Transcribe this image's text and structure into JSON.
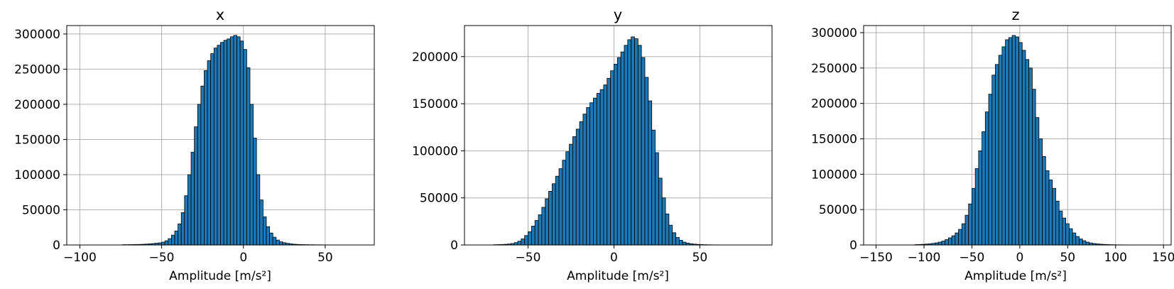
{
  "colors": {
    "bar_fill": "#1f77b4",
    "bar_edge": "#000000",
    "grid": "#b0b0b0"
  },
  "chart_data": [
    {
      "type": "bar",
      "title": "x",
      "xlabel": "Amplitude [m/s²]",
      "ylabel": "",
      "grid": true,
      "xlim": [
        -108,
        80
      ],
      "ylim": [
        0,
        312000
      ],
      "xticks": [
        -100,
        -50,
        0,
        50
      ],
      "yticks": [
        0,
        50000,
        100000,
        150000,
        200000,
        250000,
        300000
      ],
      "xtick_labels": [
        "−100",
        "−50",
        "0",
        "50"
      ],
      "ytick_labels": [
        "0",
        "50000",
        "100000",
        "150000",
        "200000",
        "250000",
        "300000"
      ],
      "bin_width": 2,
      "x": [
        -73,
        -71,
        -69,
        -67,
        -65,
        -63,
        -61,
        -59,
        -57,
        -55,
        -53,
        -51,
        -49,
        -47,
        -45,
        -43,
        -41,
        -39,
        -37,
        -35,
        -33,
        -31,
        -29,
        -27,
        -25,
        -23,
        -21,
        -19,
        -17,
        -15,
        -13,
        -11,
        -9,
        -7,
        -5,
        -3,
        -1,
        1,
        3,
        5,
        7,
        9,
        11,
        13,
        15,
        17,
        19,
        21,
        23,
        25,
        27,
        29,
        31,
        33,
        35,
        37,
        39,
        41,
        43,
        45,
        47,
        49,
        51,
        53,
        55,
        57,
        59,
        61,
        63,
        65,
        67,
        69,
        71
      ],
      "values": [
        400,
        400,
        500,
        600,
        700,
        800,
        1000,
        1300,
        1600,
        2000,
        2500,
        3000,
        4000,
        6000,
        9000,
        14000,
        20000,
        30000,
        46000,
        70000,
        100000,
        132000,
        168000,
        200000,
        226000,
        248000,
        262000,
        272000,
        280000,
        284000,
        288000,
        291000,
        293000,
        296000,
        298000,
        296000,
        290000,
        278000,
        252000,
        200000,
        152000,
        100000,
        64000,
        40000,
        26000,
        17000,
        11000,
        7000,
        4500,
        3200,
        2300,
        1600,
        1100,
        800,
        600,
        500,
        400,
        300,
        300,
        200,
        200,
        150,
        120,
        100,
        80,
        60,
        50,
        40,
        30,
        30,
        20,
        20,
        10
      ]
    },
    {
      "type": "bar",
      "title": "y",
      "xlabel": "Amplitude [m/s²]",
      "ylabel": "",
      "grid": true,
      "xlim": [
        -87,
        92
      ],
      "ylim": [
        0,
        233000
      ],
      "xticks": [
        -50,
        0,
        50
      ],
      "yticks": [
        0,
        50000,
        100000,
        150000,
        200000
      ],
      "xtick_labels": [
        "−50",
        "0",
        "50"
      ],
      "ytick_labels": [
        "0",
        "50000",
        "100000",
        "150000",
        "200000"
      ],
      "bin_width": 2,
      "x": [
        -69,
        -67,
        -65,
        -63,
        -61,
        -59,
        -57,
        -55,
        -53,
        -51,
        -49,
        -47,
        -45,
        -43,
        -41,
        -39,
        -37,
        -35,
        -33,
        -31,
        -29,
        -27,
        -25,
        -23,
        -21,
        -19,
        -17,
        -15,
        -13,
        -11,
        -9,
        -7,
        -5,
        -3,
        -1,
        1,
        3,
        5,
        7,
        9,
        11,
        13,
        15,
        17,
        19,
        21,
        23,
        25,
        27,
        29,
        31,
        33,
        35,
        37,
        39,
        41,
        43,
        45,
        47,
        49,
        51,
        53,
        55,
        57,
        59,
        61,
        63,
        65,
        67,
        69
      ],
      "values": [
        300,
        400,
        500,
        700,
        1000,
        1500,
        2500,
        4000,
        6500,
        10000,
        14000,
        20000,
        26000,
        32000,
        40000,
        49000,
        57000,
        65000,
        73000,
        81000,
        90000,
        99000,
        107000,
        115000,
        123000,
        131000,
        139000,
        146000,
        151000,
        156000,
        161000,
        165000,
        170000,
        177000,
        185000,
        192000,
        199000,
        205000,
        212000,
        218000,
        221000,
        219000,
        212000,
        199000,
        178000,
        153000,
        122000,
        98000,
        71000,
        50000,
        33000,
        21000,
        13000,
        8000,
        5000,
        3000,
        2000,
        1300,
        900,
        600,
        400,
        300,
        200,
        150,
        100,
        80,
        60,
        40,
        30,
        20
      ]
    },
    {
      "type": "bar",
      "title": "z",
      "xlabel": "Amplitude [m/s²]",
      "ylabel": "",
      "grid": true,
      "xlim": [
        -163,
        158
      ],
      "ylim": [
        0,
        310000
      ],
      "xticks": [
        -150,
        -100,
        -50,
        0,
        50,
        100,
        150
      ],
      "yticks": [
        0,
        50000,
        100000,
        150000,
        200000,
        250000,
        300000
      ],
      "xtick_labels": [
        "−150",
        "−100",
        "−50",
        "0",
        "50",
        "100",
        "150"
      ],
      "ytick_labels": [
        "0",
        "50000",
        "100000",
        "150000",
        "200000",
        "250000",
        "300000"
      ],
      "bin_width": 3.5,
      "x": [
        -107.75,
        -104.25,
        -100.75,
        -97.25,
        -93.75,
        -90.25,
        -86.75,
        -83.25,
        -79.75,
        -76.25,
        -72.75,
        -69.25,
        -65.75,
        -62.25,
        -58.75,
        -55.25,
        -51.75,
        -48.25,
        -44.75,
        -41.25,
        -37.75,
        -34.25,
        -30.75,
        -27.25,
        -23.75,
        -20.25,
        -16.75,
        -13.25,
        -9.75,
        -6.25,
        -2.75,
        0.75,
        4.25,
        7.75,
        11.25,
        14.75,
        18.25,
        21.75,
        25.25,
        28.75,
        32.25,
        35.75,
        39.25,
        42.75,
        46.25,
        49.75,
        53.25,
        56.75,
        60.25,
        63.75,
        67.25,
        70.75,
        74.25,
        77.75,
        81.25,
        84.75,
        88.25,
        91.75,
        95.25,
        98.75,
        102.25,
        105.75,
        109.25,
        112.75,
        116.25,
        119.75,
        123.25,
        126.75,
        130.25,
        133.75,
        137.25,
        140.75,
        144.25,
        147.75
      ],
      "values": [
        500,
        700,
        900,
        1200,
        1600,
        2200,
        3000,
        4000,
        5500,
        7500,
        10000,
        13000,
        17000,
        22000,
        30000,
        42000,
        58000,
        80000,
        108000,
        133000,
        160000,
        188000,
        213000,
        240000,
        255000,
        268000,
        280000,
        290000,
        293000,
        296000,
        294000,
        286000,
        275000,
        262000,
        250000,
        220000,
        180000,
        150000,
        125000,
        105000,
        92000,
        80000,
        62000,
        48000,
        38000,
        30000,
        23000,
        17000,
        12000,
        8500,
        6000,
        4000,
        2800,
        2000,
        1500,
        1100,
        800,
        600,
        400,
        300,
        200,
        150,
        120,
        100,
        80,
        60,
        50,
        40,
        30,
        20,
        20,
        10,
        10,
        10
      ]
    }
  ]
}
